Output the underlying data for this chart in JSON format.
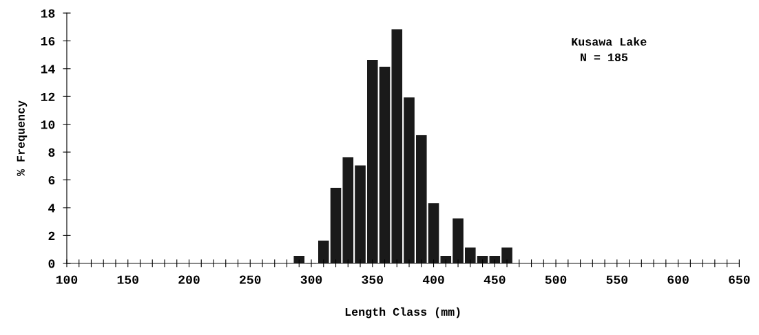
{
  "chart_data": {
    "type": "bar",
    "xlabel": "Length Class (mm)",
    "ylabel": "% Frequency",
    "annotations": [
      "Kusawa Lake",
      "N = 185"
    ],
    "x": [
      290,
      300,
      310,
      320,
      330,
      340,
      350,
      360,
      370,
      380,
      390,
      400,
      410,
      420,
      430,
      440,
      450,
      460
    ],
    "series": [
      {
        "color": "#1a1a1a",
        "values": [
          0.5,
          0,
          1.6,
          5.4,
          7.6,
          7.0,
          14.6,
          14.1,
          16.8,
          11.9,
          9.2,
          4.3,
          0.5,
          3.2,
          1.1,
          0.5,
          0.5,
          1.1
        ]
      }
    ],
    "xlim": [
      100,
      650
    ],
    "xticks": [
      100,
      {
        "value": 110,
        "label": null
      },
      {
        "value": 120,
        "label": null
      },
      {
        "value": 130,
        "label": null
      },
      {
        "value": 140,
        "label": null
      },
      150,
      {
        "value": 160,
        "label": null
      },
      {
        "value": 170,
        "label": null
      },
      {
        "value": 180,
        "label": null
      },
      {
        "value": 190,
        "label": null
      },
      200,
      {
        "value": 210,
        "label": null
      },
      {
        "value": 220,
        "label": null
      },
      {
        "value": 230,
        "label": null
      },
      {
        "value": 240,
        "label": null
      },
      250,
      {
        "value": 260,
        "label": null
      },
      {
        "value": 270,
        "label": null
      },
      {
        "value": 280,
        "label": null
      },
      {
        "value": 290,
        "label": null
      },
      300,
      {
        "value": 310,
        "label": null
      },
      {
        "value": 320,
        "label": null
      },
      {
        "value": 330,
        "label": null
      },
      {
        "value": 340,
        "label": null
      },
      350,
      {
        "value": 360,
        "label": null
      },
      {
        "value": 370,
        "label": null
      },
      {
        "value": 380,
        "label": null
      },
      {
        "value": 390,
        "label": null
      },
      400,
      {
        "value": 410,
        "label": null
      },
      {
        "value": 420,
        "label": null
      },
      {
        "value": 430,
        "label": null
      },
      {
        "value": 440,
        "label": null
      },
      450,
      {
        "value": 460,
        "label": null
      },
      {
        "value": 470,
        "label": null
      },
      {
        "value": 480,
        "label": null
      },
      {
        "value": 490,
        "label": null
      },
      500,
      {
        "value": 510,
        "label": null
      },
      {
        "value": 520,
        "label": null
      },
      {
        "value": 530,
        "label": null
      },
      {
        "value": 540,
        "label": null
      },
      550,
      {
        "value": 560,
        "label": null
      },
      {
        "value": 570,
        "label": null
      },
      {
        "value": 580,
        "label": null
      },
      {
        "value": 590,
        "label": null
      },
      600,
      {
        "value": 610,
        "label": null
      },
      {
        "value": 620,
        "label": null
      },
      {
        "value": 630,
        "label": null
      },
      {
        "value": 640,
        "label": null
      },
      650
    ],
    "ylim": [
      0,
      18
    ],
    "yticks": [
      0,
      2,
      4,
      6,
      8,
      10,
      12,
      14,
      16,
      18
    ],
    "grid": false,
    "legend": false
  }
}
